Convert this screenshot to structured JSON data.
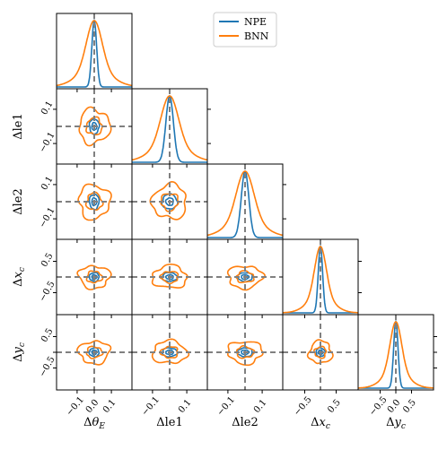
{
  "chart_data": {
    "type": "corner",
    "params": [
      {
        "label": "Δθ_E",
        "sym": "θ",
        "sub": "E",
        "range": [
          -0.22,
          0.22
        ],
        "ticks": [
          -0.1,
          0.0,
          0.1
        ],
        "tick_labels": [
          "−0.1",
          "0.0",
          "0.1"
        ]
      },
      {
        "label": "Δle1",
        "sym": "le1",
        "sub": "",
        "range": [
          -0.22,
          0.22
        ],
        "ticks": [
          -0.1,
          0.1
        ],
        "tick_labels": [
          "−0.1",
          "0.1"
        ]
      },
      {
        "label": "Δle2",
        "sym": "le2",
        "sub": "",
        "range": [
          -0.22,
          0.22
        ],
        "ticks": [
          -0.1,
          0.1
        ],
        "tick_labels": [
          "−0.1",
          "0.1"
        ]
      },
      {
        "label": "Δx_c",
        "sym": "x",
        "sub": "c",
        "range": [
          -1.2,
          1.2
        ],
        "ticks": [
          -0.5,
          0.5
        ],
        "tick_labels": [
          "−0.5",
          "0.5"
        ]
      },
      {
        "label": "Δy_c",
        "sym": "y",
        "sub": "c",
        "range": [
          -1.2,
          1.2
        ],
        "ticks": [
          -0.5,
          0.0,
          0.5
        ],
        "tick_labels": [
          "−0.5",
          "0.0",
          "0.5"
        ]
      }
    ],
    "truth": [
      0,
      0,
      0,
      0,
      0
    ],
    "series": [
      {
        "name": "NPE",
        "color": "#1f77b4",
        "sigma": [
          0.014,
          0.022,
          0.022,
          0.07,
          0.07
        ]
      },
      {
        "name": "BNN",
        "color": "#ff7f0e",
        "sigma": [
          0.045,
          0.05,
          0.05,
          0.18,
          0.18
        ]
      }
    ],
    "contour_levels": [
      0.39,
      0.86
    ],
    "legend_position": "top-center",
    "truth_line_color": "#808080"
  }
}
